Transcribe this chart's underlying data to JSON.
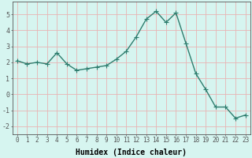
{
  "x": [
    0,
    1,
    2,
    3,
    4,
    5,
    6,
    7,
    8,
    9,
    10,
    11,
    12,
    13,
    14,
    15,
    16,
    17,
    18,
    19,
    20,
    21,
    22,
    23
  ],
  "y": [
    2.1,
    1.9,
    2.0,
    1.9,
    2.6,
    1.9,
    1.5,
    1.6,
    1.7,
    1.8,
    2.2,
    2.7,
    3.6,
    4.7,
    5.2,
    4.5,
    5.1,
    3.2,
    1.3,
    0.3,
    -0.8,
    -0.8,
    -1.5,
    -1.3
  ],
  "line_color": "#2e7d6e",
  "marker": "+",
  "markersize": 4,
  "linewidth": 1.0,
  "xlabel": "Humidex (Indice chaleur)",
  "xlabel_fontsize": 7,
  "bg_color": "#d6f5f0",
  "grid_color": "#e8b4b4",
  "axis_color": "#555555",
  "ylim": [
    -2.5,
    5.8
  ],
  "yticks": [
    -2,
    -1,
    0,
    1,
    2,
    3,
    4,
    5
  ],
  "xlim": [
    -0.5,
    23.5
  ],
  "xticks": [
    0,
    1,
    2,
    3,
    4,
    5,
    6,
    7,
    8,
    9,
    10,
    11,
    12,
    13,
    14,
    15,
    16,
    17,
    18,
    19,
    20,
    21,
    22,
    23
  ],
  "tick_fontsize": 5.5,
  "ytick_fontsize": 6.0
}
